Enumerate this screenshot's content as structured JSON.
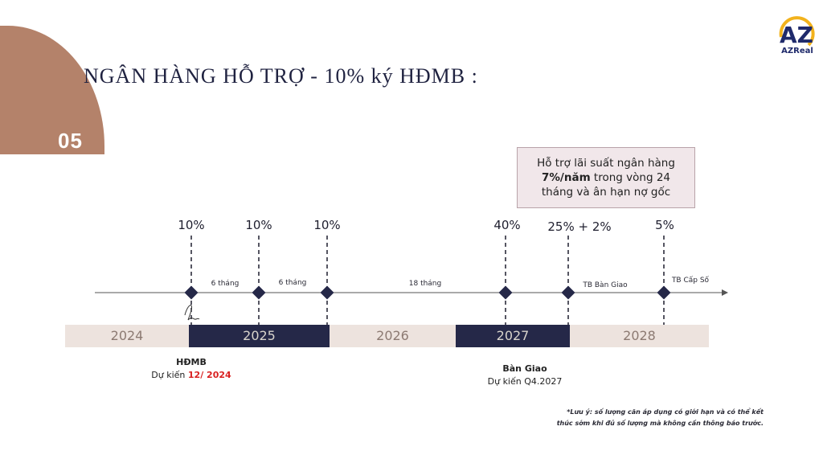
{
  "slide": {
    "number": "05",
    "title": "NGÂN HÀNG HỖ TRỢ - 10% ký HĐMB :",
    "accent_color": "#b4826a",
    "dark_color": "#252848"
  },
  "brand": {
    "name": "AZReal",
    "logo_letters": "AZ"
  },
  "callout": {
    "line1": "Hỗ trợ lãi suất ngân hàng",
    "bold": "7%/năm",
    "line2_rest": " trong vòng 24",
    "line3": "tháng và ân hạn nợ gốc"
  },
  "payments": [
    "10%",
    "10%",
    "10%",
    "40%",
    "25% + 2%",
    "5%"
  ],
  "segments": [
    "6 tháng",
    "6 tháng",
    "18 tháng",
    "TB Bàn Giao",
    "TB Cấp Số"
  ],
  "years": [
    "2024",
    "2025",
    "2026",
    "2027",
    "2028"
  ],
  "events": {
    "hdmb": {
      "title": "HĐMB",
      "prefix": "Dự kiến ",
      "date": "12/ 2024"
    },
    "handover": {
      "title": "Bàn Giao",
      "text": "Dự kiến Q4.2027"
    }
  },
  "note": {
    "line1": "*Lưu ý: số lượng căn áp dụng có giới hạn và có thể kết",
    "line2": "thúc sớm khi đủ số lượng mà không cần thông báo trước."
  }
}
